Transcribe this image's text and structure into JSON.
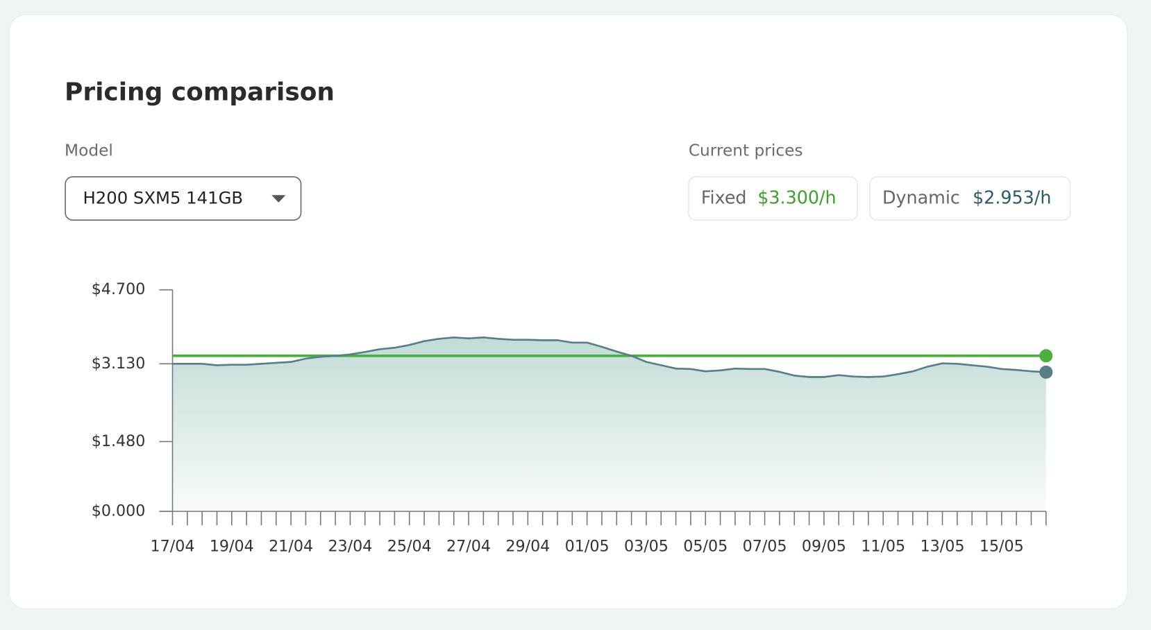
{
  "header": {
    "title": "Pricing comparison"
  },
  "model": {
    "label": "Model",
    "selected": "H200 SXM5 141GB"
  },
  "current_prices": {
    "title": "Current prices",
    "fixed": "$3.300/h",
    "dynamic": "$2.953/h"
  },
  "chart_data": {
    "type": "line",
    "categories": [
      "17/04",
      null,
      null,
      null,
      "19/04",
      null,
      null,
      null,
      "21/04",
      null,
      null,
      null,
      "23/04",
      null,
      null,
      null,
      "25/04",
      null,
      null,
      null,
      "27/04",
      null,
      null,
      null,
      "29/04",
      null,
      null,
      null,
      "01/05",
      null,
      null,
      null,
      "03/05",
      null,
      null,
      null,
      "05/05",
      null,
      null,
      null,
      "07/05",
      null,
      null,
      null,
      "09/05",
      null,
      null,
      null,
      "11/05",
      null,
      null,
      null,
      "13/05",
      null,
      null,
      null,
      "15/05",
      null,
      null,
      null
    ],
    "series": [
      {
        "name": "Fixed",
        "color": "#4cae3c",
        "values": [
          3.3,
          3.3,
          3.3,
          3.3,
          3.3,
          3.3,
          3.3,
          3.3,
          3.3,
          3.3,
          3.3,
          3.3,
          3.3,
          3.3,
          3.3,
          3.3,
          3.3,
          3.3,
          3.3,
          3.3,
          3.3,
          3.3,
          3.3,
          3.3,
          3.3,
          3.3,
          3.3,
          3.3,
          3.3,
          3.3,
          3.3,
          3.3,
          3.3,
          3.3,
          3.3,
          3.3,
          3.3,
          3.3,
          3.3,
          3.3,
          3.3,
          3.3,
          3.3,
          3.3,
          3.3,
          3.3,
          3.3,
          3.3,
          3.3,
          3.3,
          3.3,
          3.3,
          3.3,
          3.3,
          3.3,
          3.3,
          3.3,
          3.3,
          3.3,
          3.3
        ]
      },
      {
        "name": "Dynamic",
        "color": "#587d8b",
        "values": [
          3.13,
          3.13,
          3.13,
          3.1,
          3.11,
          3.11,
          3.13,
          3.15,
          3.17,
          3.24,
          3.28,
          3.3,
          3.33,
          3.38,
          3.44,
          3.47,
          3.53,
          3.61,
          3.66,
          3.69,
          3.67,
          3.69,
          3.66,
          3.64,
          3.64,
          3.63,
          3.63,
          3.58,
          3.58,
          3.49,
          3.39,
          3.3,
          3.17,
          3.1,
          3.03,
          3.02,
          2.97,
          2.99,
          3.03,
          3.02,
          3.02,
          2.96,
          2.88,
          2.85,
          2.85,
          2.89,
          2.86,
          2.85,
          2.86,
          2.91,
          2.97,
          3.07,
          3.14,
          3.13,
          3.1,
          3.07,
          3.02,
          3.0,
          2.97,
          2.953
        ]
      }
    ],
    "ylim": [
      0,
      4.7
    ],
    "yticks": [
      {
        "value": 0,
        "label": "$0.000"
      },
      {
        "value": 1.48,
        "label": "$1.480"
      },
      {
        "value": 3.13,
        "label": "$3.130"
      },
      {
        "value": 4.7,
        "label": "$4.700"
      }
    ]
  }
}
